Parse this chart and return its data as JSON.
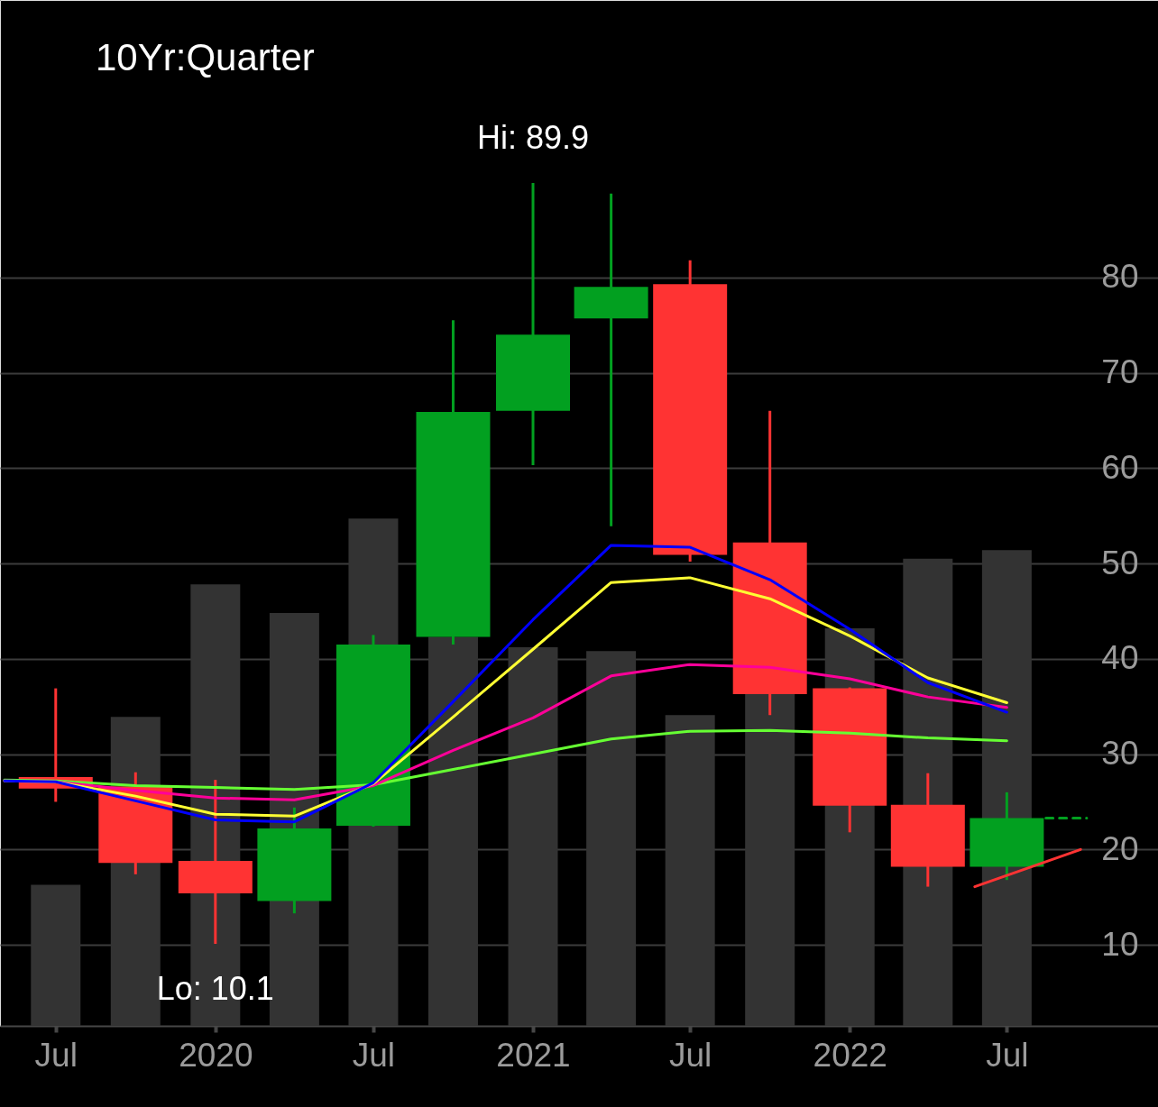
{
  "chart_data": {
    "type": "candlestick",
    "title": "10Yr:Quarter",
    "x": [
      "2019-07-01",
      "2019-10-01",
      "2020-01-01",
      "2020-04-01",
      "2020-07-01",
      "2020-10-01",
      "2021-01-01",
      "2021-04-01",
      "2021-07-01",
      "2021-10-01",
      "2022-01-01",
      "2022-04-01",
      "2022-07-01"
    ],
    "ohlc": [
      [
        27.6,
        36.9,
        25.0,
        26.4
      ],
      [
        26.6,
        28.1,
        17.4,
        18.6
      ],
      [
        18.8,
        27.3,
        10.1,
        15.4
      ],
      [
        14.6,
        24.4,
        13.3,
        22.2
      ],
      [
        22.5,
        42.5,
        22.4,
        41.5
      ],
      [
        42.3,
        75.5,
        41.5,
        65.9
      ],
      [
        66.0,
        89.9,
        60.3,
        74.0
      ],
      [
        75.7,
        88.8,
        53.9,
        79.0
      ],
      [
        79.3,
        81.8,
        50.2,
        50.9
      ],
      [
        52.2,
        66.0,
        34.1,
        36.3
      ],
      [
        36.9,
        37.0,
        21.8,
        24.6
      ],
      [
        24.7,
        28.0,
        16.1,
        18.2
      ],
      [
        18.2,
        26.0,
        16.8,
        23.3
      ]
    ],
    "colors": [
      "#ff3333",
      "#ff3333",
      "#ff3333",
      "#02a020",
      "#02a020",
      "#02a020",
      "#02a020",
      "#02a020",
      "#ff3333",
      "#ff3333",
      "#ff3333",
      "#ff3333",
      "#02a020"
    ],
    "series": [
      {
        "type": "bar",
        "color": "#333333",
        "values": [
          16.3,
          33.9,
          47.8,
          44.8,
          54.7,
          42.3,
          41.2,
          40.8,
          34.1,
          36.3,
          43.2,
          50.5,
          51.4
        ]
      },
      {
        "type": "line",
        "color": "#66ff33",
        "x": [
          "2019-05-03",
          "2019-07-01",
          "2019-10-01",
          "2020-01-01",
          "2020-04-01",
          "2020-07-01",
          "2020-10-01",
          "2021-01-01",
          "2021-04-01",
          "2021-07-01",
          "2021-10-01",
          "2022-01-01",
          "2022-04-01",
          "2022-07-01"
        ],
        "values": [
          27.3,
          27.2,
          26.7,
          26.5,
          26.3,
          26.8,
          28.4,
          30.0,
          31.6,
          32.4,
          32.5,
          32.2,
          31.7,
          31.4
        ]
      },
      {
        "type": "line",
        "color": "#ff0099",
        "x": [
          "2019-05-03",
          "2019-07-01",
          "2019-10-01",
          "2020-01-01",
          "2020-04-01",
          "2020-07-01",
          "2020-10-01",
          "2021-01-01",
          "2021-04-01",
          "2021-07-01",
          "2021-10-01",
          "2022-01-01",
          "2022-04-01",
          "2022-07-01"
        ],
        "values": [
          27.2,
          27.1,
          26.2,
          25.4,
          25.2,
          26.7,
          30.4,
          33.8,
          38.2,
          39.4,
          39.1,
          37.9,
          36.0,
          34.9
        ]
      },
      {
        "type": "line",
        "color": "#ffff33",
        "x": [
          "2019-05-03",
          "2019-07-01",
          "2019-10-01",
          "2020-01-01",
          "2020-04-01",
          "2020-07-01",
          "2020-10-01",
          "2021-01-01",
          "2021-04-01",
          "2021-07-01",
          "2021-10-01",
          "2022-01-01",
          "2022-04-01",
          "2022-07-01"
        ],
        "values": [
          27.2,
          27.1,
          25.6,
          23.7,
          23.5,
          26.9,
          33.9,
          41.0,
          48.0,
          48.5,
          46.3,
          42.4,
          38.0,
          35.4
        ]
      },
      {
        "type": "line",
        "color": "#0000ff",
        "x": [
          "2019-05-03",
          "2019-07-01",
          "2019-10-01",
          "2020-01-01",
          "2020-04-01",
          "2020-07-01",
          "2020-10-01",
          "2021-01-01",
          "2021-04-01",
          "2021-07-01",
          "2021-10-01",
          "2022-01-01",
          "2022-04-01",
          "2022-07-01"
        ],
        "values": [
          27.2,
          27.1,
          25.1,
          23.1,
          22.9,
          27.0,
          35.5,
          44.1,
          51.9,
          51.7,
          48.3,
          43.1,
          37.5,
          34.4
        ]
      },
      {
        "type": "line",
        "color": "#02a020",
        "line_style": "dashed",
        "x": [
          "2022-08-15",
          "2022-10-01"
        ],
        "values": [
          23.3,
          23.3
        ]
      },
      {
        "type": "line",
        "color": "#ff3333",
        "x": [
          "2022-05-25",
          "2022-09-24"
        ],
        "values": [
          16.1,
          20.0
        ]
      }
    ],
    "xlim": [
      "2019-05-03",
      "2022-12-17"
    ],
    "xticks": [
      {
        "value": "2019-07-01",
        "label": "Jul"
      },
      {
        "value": "2020-01-01",
        "label": "2020"
      },
      {
        "value": "2020-07-01",
        "label": "Jul"
      },
      {
        "value": "2021-01-01",
        "label": "2021"
      },
      {
        "value": "2021-07-01",
        "label": "Jul"
      },
      {
        "value": "2022-01-01",
        "label": "2022"
      },
      {
        "value": "2022-07-01",
        "label": "Jul"
      }
    ],
    "ylim": [
      1.5,
      109.1
    ],
    "yticks": [
      10,
      20,
      30,
      40,
      50,
      60,
      70,
      80
    ],
    "grid": "y",
    "annotations": [
      {
        "text": "Hi: 89.9",
        "x": "2021-01-01",
        "y": 89.9
      },
      {
        "text": "Lo: 10.1",
        "x": "2020-01-01",
        "y": 10.1
      }
    ]
  }
}
